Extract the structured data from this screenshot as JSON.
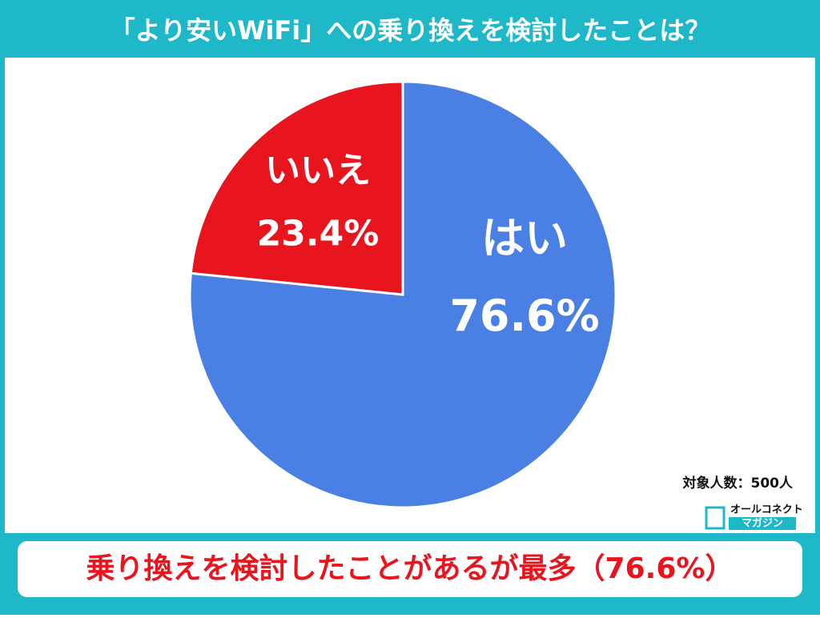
{
  "chart_data": {
    "type": "pie",
    "title": "「より安いWiFi」への乗り換えを検討したことは？",
    "categories": [
      "はい",
      "いいえ"
    ],
    "values": [
      76.6,
      23.4
    ],
    "value_labels": [
      "76.6%",
      "23.4%"
    ],
    "colors": [
      "#4a80e3",
      "#e8141e"
    ],
    "note": "対象人数：500人",
    "logo": [
      "オールコネクト",
      "マガジン"
    ],
    "conclusion": "乗り換えを検討したことがあるが最多（76.6%）"
  }
}
